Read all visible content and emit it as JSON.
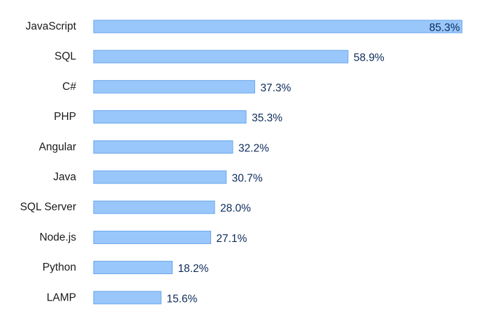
{
  "chart_data": {
    "type": "bar",
    "orientation": "horizontal",
    "title": "",
    "xlabel": "",
    "ylabel": "",
    "grid": false,
    "legend": "none",
    "xlim": [
      0,
      85.3
    ],
    "bar_color": "#99c7fb",
    "bar_border_color": "#6aa6ea",
    "value_label_color": "#0b2a5a",
    "categories": [
      "JavaScript",
      "SQL",
      "C#",
      "PHP",
      "Angular",
      "Java",
      "SQL Server",
      "Node.js",
      "Python",
      "LAMP"
    ],
    "values": [
      85.3,
      58.9,
      37.3,
      35.3,
      32.2,
      30.7,
      28.0,
      27.1,
      18.2,
      15.6
    ],
    "value_labels": [
      "85.3%",
      "58.9%",
      "37.3%",
      "35.3%",
      "32.2%",
      "30.7%",
      "28.0%",
      "27.1%",
      "18.2%",
      "15.6%"
    ],
    "value_label_inside": [
      true,
      false,
      false,
      false,
      false,
      false,
      false,
      false,
      false,
      false
    ]
  }
}
